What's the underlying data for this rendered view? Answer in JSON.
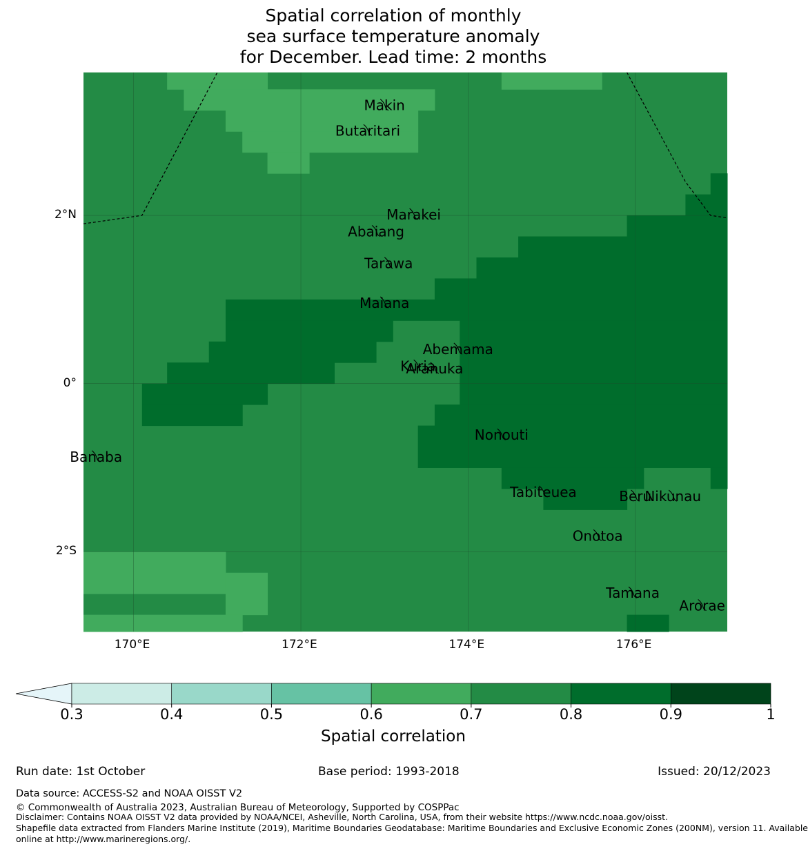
{
  "title": {
    "line1": "Spatial correlation of monthly",
    "line2": "sea surface temperature anomaly",
    "line3": "for December. Lead time: 2 months"
  },
  "map": {
    "lon_range": [
      169.4,
      177.1
    ],
    "lat_range": [
      -2.95,
      3.7
    ],
    "cell_size_deg": 0.25,
    "x_ticks": [
      {
        "lon": 170,
        "label": "170°E"
      },
      {
        "lon": 172,
        "label": "172°E"
      },
      {
        "lon": 174,
        "label": "174°E"
      },
      {
        "lon": 176,
        "label": "176°E"
      }
    ],
    "y_ticks": [
      {
        "lat": 2,
        "label": "2°N"
      },
      {
        "lat": 0,
        "label": "0°"
      },
      {
        "lat": -2,
        "label": "2°S"
      }
    ],
    "colors": {
      "c06": "#41ab5d",
      "c07": "#238b45",
      "c08": "#006d2c",
      "grid": "#1b4d2c",
      "boundary": "#000000"
    },
    "default_class": "0.7-0.8",
    "regions_0_6_to_0_7": [
      {
        "lon": [
          170.4,
          171.6
        ],
        "lat": [
          3.5,
          3.7
        ]
      },
      {
        "lon": [
          170.6,
          173.6
        ],
        "lat": [
          3.25,
          3.5
        ]
      },
      {
        "lon": [
          171.1,
          173.4
        ],
        "lat": [
          3.0,
          3.25
        ]
      },
      {
        "lon": [
          171.3,
          173.4
        ],
        "lat": [
          2.75,
          3.0
        ]
      },
      {
        "lon": [
          171.6,
          172.1
        ],
        "lat": [
          2.5,
          2.75
        ]
      },
      {
        "lon": [
          173.6,
          173.6
        ],
        "lat": [
          3.5,
          3.7
        ]
      },
      {
        "lon": [
          173.6,
          173.6
        ],
        "lat": [
          3.5,
          3.7
        ]
      },
      {
        "lon": [
          174.4,
          175.6
        ],
        "lat": [
          3.5,
          3.7
        ]
      },
      {
        "lon": [
          169.4,
          171.1
        ],
        "lat": [
          -2.5,
          -2.0
        ]
      },
      {
        "lon": [
          171.1,
          171.6
        ],
        "lat": [
          -2.75,
          -2.25
        ]
      },
      {
        "lon": [
          169.4,
          171.3
        ],
        "lat": [
          -2.95,
          -2.75
        ]
      }
    ],
    "regions_0_8_to_0_9": [
      {
        "lon": [
          176.9,
          177.1
        ],
        "lat": [
          2.0,
          2.5
        ]
      },
      {
        "lon": [
          176.6,
          176.9
        ],
        "lat": [
          2.0,
          2.25
        ]
      },
      {
        "lon": [
          175.9,
          177.1
        ],
        "lat": [
          1.75,
          2.0
        ]
      },
      {
        "lon": [
          174.6,
          177.1
        ],
        "lat": [
          1.5,
          1.75
        ]
      },
      {
        "lon": [
          174.1,
          177.1
        ],
        "lat": [
          0.75,
          1.5
        ]
      },
      {
        "lon": [
          173.6,
          174.1
        ],
        "lat": [
          0.75,
          1.25
        ]
      },
      {
        "lon": [
          171.1,
          173.6
        ],
        "lat": [
          0.75,
          1.0
        ]
      },
      {
        "lon": [
          173.9,
          177.1
        ],
        "lat": [
          0.0,
          0.75
        ]
      },
      {
        "lon": [
          171.1,
          173.1
        ],
        "lat": [
          0.5,
          0.75
        ]
      },
      {
        "lon": [
          170.9,
          172.9
        ],
        "lat": [
          0.25,
          0.5
        ]
      },
      {
        "lon": [
          170.4,
          172.4
        ],
        "lat": [
          0.0,
          0.25
        ]
      },
      {
        "lon": [
          170.1,
          171.6
        ],
        "lat": [
          -0.25,
          0.0
        ]
      },
      {
        "lon": [
          173.9,
          177.1
        ],
        "lat": [
          -0.25,
          0.0
        ]
      },
      {
        "lon": [
          170.1,
          171.3
        ],
        "lat": [
          -0.5,
          -0.25
        ]
      },
      {
        "lon": [
          173.6,
          177.1
        ],
        "lat": [
          -0.5,
          -0.25
        ]
      },
      {
        "lon": [
          173.4,
          177.1
        ],
        "lat": [
          -1.0,
          -0.5
        ]
      },
      {
        "lon": [
          174.4,
          176.1
        ],
        "lat": [
          -1.25,
          -1.0
        ]
      },
      {
        "lon": [
          176.9,
          177.1
        ],
        "lat": [
          -1.25,
          -1.0
        ]
      },
      {
        "lon": [
          174.9,
          175.9
        ],
        "lat": [
          -1.5,
          -1.25
        ]
      },
      {
        "lon": [
          175.9,
          176.4
        ],
        "lat": [
          -2.95,
          -2.75
        ]
      }
    ],
    "boundaries": [
      {
        "name": "west",
        "points": [
          [
            169.4,
            1.9
          ],
          [
            170.1,
            2.0
          ],
          [
            171.0,
            3.7
          ]
        ]
      },
      {
        "name": "east",
        "points": [
          [
            175.9,
            3.7
          ],
          [
            176.6,
            2.4
          ],
          [
            176.9,
            2.0
          ],
          [
            177.1,
            1.97
          ]
        ]
      }
    ],
    "islands": [
      {
        "name": "Makin",
        "lon": 173.0,
        "lat": 3.3
      },
      {
        "name": "Butaritari",
        "lon": 172.8,
        "lat": 3.0
      },
      {
        "name": "Marakei",
        "lon": 173.35,
        "lat": 2.0
      },
      {
        "name": "Abaiang",
        "lon": 172.9,
        "lat": 1.8
      },
      {
        "name": "Tarawa",
        "lon": 173.05,
        "lat": 1.42
      },
      {
        "name": "Maiana",
        "lon": 173.0,
        "lat": 0.95
      },
      {
        "name": "Abemama",
        "lon": 173.88,
        "lat": 0.4
      },
      {
        "name": "Kuria",
        "lon": 173.4,
        "lat": 0.2
      },
      {
        "name": "Aranuka",
        "lon": 173.6,
        "lat": 0.17
      },
      {
        "name": "Banaba",
        "lon": 169.55,
        "lat": -0.88
      },
      {
        "name": "Nonouti",
        "lon": 174.4,
        "lat": -0.62
      },
      {
        "name": "Tabiteuea",
        "lon": 174.9,
        "lat": -1.3
      },
      {
        "name": "Beru",
        "lon": 176.0,
        "lat": -1.35
      },
      {
        "name": "Nikunau",
        "lon": 176.45,
        "lat": -1.35
      },
      {
        "name": "Onotoa",
        "lon": 175.55,
        "lat": -1.82
      },
      {
        "name": "Tamana",
        "lon": 175.97,
        "lat": -2.5
      },
      {
        "name": "Arorae",
        "lon": 176.8,
        "lat": -2.65
      }
    ]
  },
  "colorbar": {
    "label": "Spatial correlation",
    "ticks": [
      "0.3",
      "0.4",
      "0.5",
      "0.6",
      "0.7",
      "0.8",
      "0.9",
      "1"
    ],
    "extend_color": "#e5f5f9",
    "colors": [
      "#ccece6",
      "#99d8c9",
      "#66c2a4",
      "#41ab5d",
      "#238b45",
      "#006d2c",
      "#00441b"
    ]
  },
  "footer": {
    "run_date": "Run date: 1st October",
    "base_period": "Base period: 1993-2018",
    "issued": "Issued: 20/12/2023",
    "data_source": "Data source: ACCESS-S2 and NOAA OISST V2",
    "copyright": "© Commonwealth of Australia 2023, Australian Bureau of Meteorology, Supported by COSPPac",
    "disclaimer": "Disclaimer: Contains NOAA OISST V2 data provided by NOAA/NCEI, Asheville, North Carolina, USA, from their website https://www.ncdc.noaa.gov/oisst.",
    "shapefile1": "Shapefile data extracted from Flanders Marine Institute (2019), Maritime Boundaries Geodatabase: Maritime Boundaries and Exclusive Economic Zones (200NM), version 11. Available",
    "shapefile2": "online at http://www.marineregions.org/."
  }
}
